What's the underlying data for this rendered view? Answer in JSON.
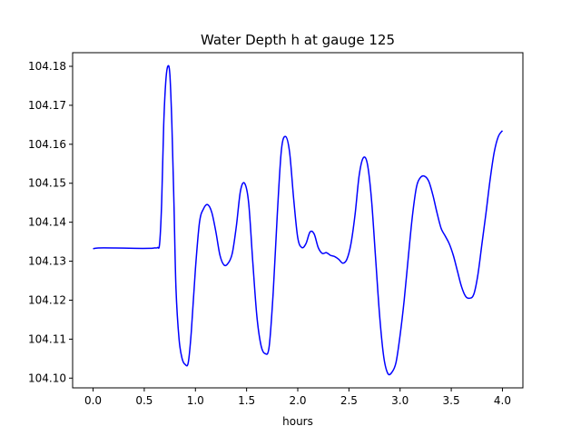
{
  "chart_data": {
    "type": "line",
    "title": "Water Depth h at gauge 125",
    "xlabel": "hours",
    "ylabel": "",
    "xlim": [
      -0.2,
      4.2
    ],
    "ylim": [
      104.0975,
      104.1835
    ],
    "xticks": [
      0.0,
      0.5,
      1.0,
      1.5,
      2.0,
      2.5,
      3.0,
      3.5,
      4.0
    ],
    "xtick_labels": [
      "0.0",
      "0.5",
      "1.0",
      "1.5",
      "2.0",
      "2.5",
      "3.0",
      "3.5",
      "4.0"
    ],
    "yticks": [
      104.1,
      104.11,
      104.12,
      104.13,
      104.14,
      104.15,
      104.16,
      104.17,
      104.18
    ],
    "ytick_labels": [
      "104.10",
      "104.11",
      "104.12",
      "104.13",
      "104.14",
      "104.15",
      "104.16",
      "104.17",
      "104.18"
    ],
    "grid": false,
    "legend": "none",
    "series": [
      {
        "color": "#0000ff",
        "x": [
          0.0,
          0.05,
          0.2,
          0.4,
          0.55,
          0.6,
          0.63,
          0.65,
          0.67,
          0.69,
          0.71,
          0.73,
          0.75,
          0.77,
          0.79,
          0.81,
          0.84,
          0.87,
          0.9,
          0.93,
          0.96,
          1.0,
          1.04,
          1.08,
          1.12,
          1.16,
          1.2,
          1.24,
          1.28,
          1.32,
          1.36,
          1.4,
          1.44,
          1.48,
          1.52,
          1.56,
          1.6,
          1.64,
          1.68,
          1.72,
          1.76,
          1.8,
          1.84,
          1.88,
          1.92,
          1.96,
          2.0,
          2.04,
          2.08,
          2.12,
          2.16,
          2.2,
          2.24,
          2.28,
          2.32,
          2.36,
          2.4,
          2.44,
          2.48,
          2.52,
          2.56,
          2.6,
          2.64,
          2.68,
          2.72,
          2.76,
          2.8,
          2.84,
          2.88,
          2.92,
          2.96,
          3.0,
          3.04,
          3.08,
          3.12,
          3.16,
          3.2,
          3.24,
          3.28,
          3.32,
          3.36,
          3.4,
          3.44,
          3.48,
          3.52,
          3.56,
          3.6,
          3.64,
          3.68,
          3.72,
          3.76,
          3.8,
          3.84,
          3.88,
          3.92,
          3.96,
          4.0
        ],
        "y": [
          104.1332,
          104.1334,
          104.1334,
          104.1333,
          104.1333,
          104.1334,
          104.1335,
          104.1345,
          104.145,
          104.165,
          104.176,
          104.18,
          104.178,
          104.165,
          104.145,
          104.123,
          104.11,
          104.105,
          104.1035,
          104.104,
          104.112,
          104.128,
          104.14,
          104.1435,
          104.1445,
          104.1425,
          104.1375,
          104.1315,
          104.129,
          104.1295,
          104.132,
          104.139,
          104.148,
          104.15,
          104.145,
          104.13,
          104.116,
          104.1085,
          104.1063,
          104.108,
          104.122,
          104.142,
          104.1585,
          104.162,
          104.158,
          104.146,
          104.136,
          104.1335,
          104.1345,
          104.1375,
          104.137,
          104.1335,
          104.132,
          104.1322,
          104.1315,
          104.1312,
          104.1305,
          104.1295,
          104.1305,
          104.1345,
          104.142,
          104.152,
          104.1565,
          104.155,
          104.146,
          104.131,
          104.116,
          104.1055,
          104.1012,
          104.1015,
          104.104,
          104.111,
          104.12,
          104.131,
          104.1415,
          104.149,
          104.1515,
          104.1518,
          104.1505,
          104.147,
          104.1425,
          104.1385,
          104.1365,
          104.1345,
          104.1315,
          104.1275,
          104.1235,
          104.121,
          104.1205,
          104.1215,
          104.1265,
          104.1345,
          104.1425,
          104.151,
          104.158,
          104.162,
          104.1635
        ]
      }
    ]
  }
}
